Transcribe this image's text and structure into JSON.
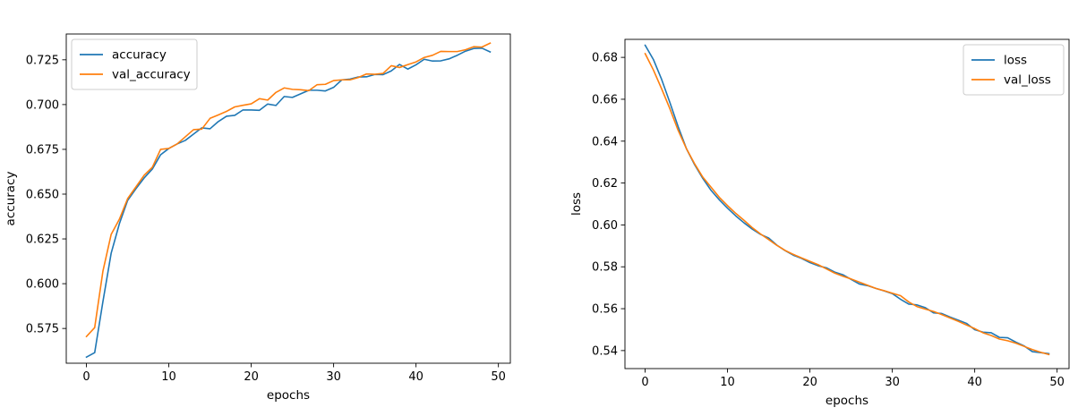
{
  "chart_data": [
    {
      "type": "line",
      "xlabel": "epochs",
      "ylabel": "accuracy",
      "xlim": [
        -2.45,
        51.45
      ],
      "ylim": [
        0.5556,
        0.7394
      ],
      "xticks": [
        0,
        10,
        20,
        30,
        40,
        50
      ],
      "yticks": [
        0.575,
        0.6,
        0.625,
        0.65,
        0.675,
        0.7,
        0.725
      ],
      "ytick_labels": [
        "0.575",
        "0.600",
        "0.625",
        "0.650",
        "0.675",
        "0.700",
        "0.725"
      ],
      "grid": false,
      "legend": "top-left",
      "x": [
        0,
        1,
        2,
        3,
        4,
        5,
        6,
        7,
        8,
        9,
        10,
        11,
        12,
        13,
        14,
        15,
        16,
        17,
        18,
        19,
        20,
        21,
        22,
        23,
        24,
        25,
        26,
        27,
        28,
        29,
        30,
        31,
        32,
        33,
        34,
        35,
        36,
        37,
        38,
        39,
        40,
        41,
        42,
        43,
        44,
        45,
        46,
        47,
        48,
        49
      ],
      "series": [
        {
          "name": "accuracy",
          "color": "#1f77b4",
          "values": [
            0.559,
            0.5615,
            0.59,
            0.617,
            0.6335,
            0.6465,
            0.653,
            0.659,
            0.664,
            0.672,
            0.6755,
            0.678,
            0.68,
            0.6835,
            0.687,
            0.6865,
            0.6905,
            0.6935,
            0.694,
            0.697,
            0.697,
            0.6968,
            0.7003,
            0.6995,
            0.7045,
            0.704,
            0.706,
            0.708,
            0.708,
            0.7076,
            0.7096,
            0.7138,
            0.7142,
            0.7154,
            0.7155,
            0.7168,
            0.7167,
            0.7188,
            0.7224,
            0.7198,
            0.7222,
            0.7253,
            0.7243,
            0.7244,
            0.7255,
            0.7275,
            0.7298,
            0.7313,
            0.7315,
            0.7294
          ]
        },
        {
          "name": "val_accuracy",
          "color": "#ff7f0e",
          "values": [
            0.5705,
            0.5755,
            0.607,
            0.6275,
            0.636,
            0.6475,
            0.654,
            0.6605,
            0.665,
            0.675,
            0.6755,
            0.678,
            0.682,
            0.686,
            0.6863,
            0.6923,
            0.6942,
            0.6962,
            0.6987,
            0.6996,
            0.7004,
            0.7033,
            0.7025,
            0.7068,
            0.7093,
            0.7085,
            0.7083,
            0.7078,
            0.7111,
            0.7113,
            0.7134,
            0.7138,
            0.7138,
            0.7151,
            0.7171,
            0.7169,
            0.7174,
            0.7217,
            0.7207,
            0.7223,
            0.7238,
            0.7263,
            0.7275,
            0.7297,
            0.7296,
            0.7296,
            0.7306,
            0.7323,
            0.7321,
            0.7343
          ]
        }
      ]
    },
    {
      "type": "line",
      "xlabel": "epochs",
      "ylabel": "loss",
      "xlim": [
        -2.45,
        51.45
      ],
      "ylim": [
        0.5314,
        0.6886
      ],
      "xticks": [
        0,
        10,
        20,
        30,
        40,
        50
      ],
      "yticks": [
        0.54,
        0.56,
        0.58,
        0.6,
        0.62,
        0.64,
        0.66,
        0.68
      ],
      "ytick_labels": [
        "0.54",
        "0.56",
        "0.58",
        "0.60",
        "0.62",
        "0.64",
        "0.66",
        "0.68"
      ],
      "grid": false,
      "legend": "top-right",
      "x": [
        0,
        1,
        2,
        3,
        4,
        5,
        6,
        7,
        8,
        9,
        10,
        11,
        12,
        13,
        14,
        15,
        16,
        17,
        18,
        19,
        20,
        21,
        22,
        23,
        24,
        25,
        26,
        27,
        28,
        29,
        30,
        31,
        32,
        33,
        34,
        35,
        36,
        37,
        38,
        39,
        40,
        41,
        42,
        43,
        44,
        45,
        46,
        47,
        48,
        49
      ],
      "series": [
        {
          "name": "loss",
          "color": "#1f77b4",
          "values": [
            0.6858,
            0.679,
            0.6695,
            0.6585,
            0.647,
            0.6365,
            0.6288,
            0.6222,
            0.6165,
            0.612,
            0.608,
            0.6043,
            0.601,
            0.598,
            0.5955,
            0.5937,
            0.5903,
            0.5877,
            0.5855,
            0.584,
            0.582,
            0.5805,
            0.5795,
            0.5775,
            0.5762,
            0.574,
            0.5718,
            0.571,
            0.5697,
            0.5685,
            0.5672,
            0.5645,
            0.5622,
            0.5618,
            0.5605,
            0.558,
            0.5577,
            0.556,
            0.5545,
            0.553,
            0.55,
            0.5488,
            0.5485,
            0.5463,
            0.5461,
            0.544,
            0.5422,
            0.5395,
            0.539,
            0.5385
          ]
        },
        {
          "name": "val_loss",
          "color": "#ff7f0e",
          "values": [
            0.6818,
            0.674,
            0.665,
            0.6555,
            0.6452,
            0.6365,
            0.6292,
            0.6228,
            0.618,
            0.6132,
            0.6092,
            0.6055,
            0.6022,
            0.5987,
            0.5957,
            0.593,
            0.5902,
            0.5878,
            0.5859,
            0.5842,
            0.5826,
            0.581,
            0.579,
            0.577,
            0.5755,
            0.5742,
            0.5727,
            0.5712,
            0.5697,
            0.5686,
            0.5674,
            0.5662,
            0.5632,
            0.561,
            0.5598,
            0.5587,
            0.5572,
            0.5556,
            0.554,
            0.5522,
            0.5505,
            0.5485,
            0.5472,
            0.5455,
            0.5447,
            0.5435,
            0.542,
            0.5405,
            0.5392,
            0.5381
          ]
        }
      ]
    }
  ]
}
